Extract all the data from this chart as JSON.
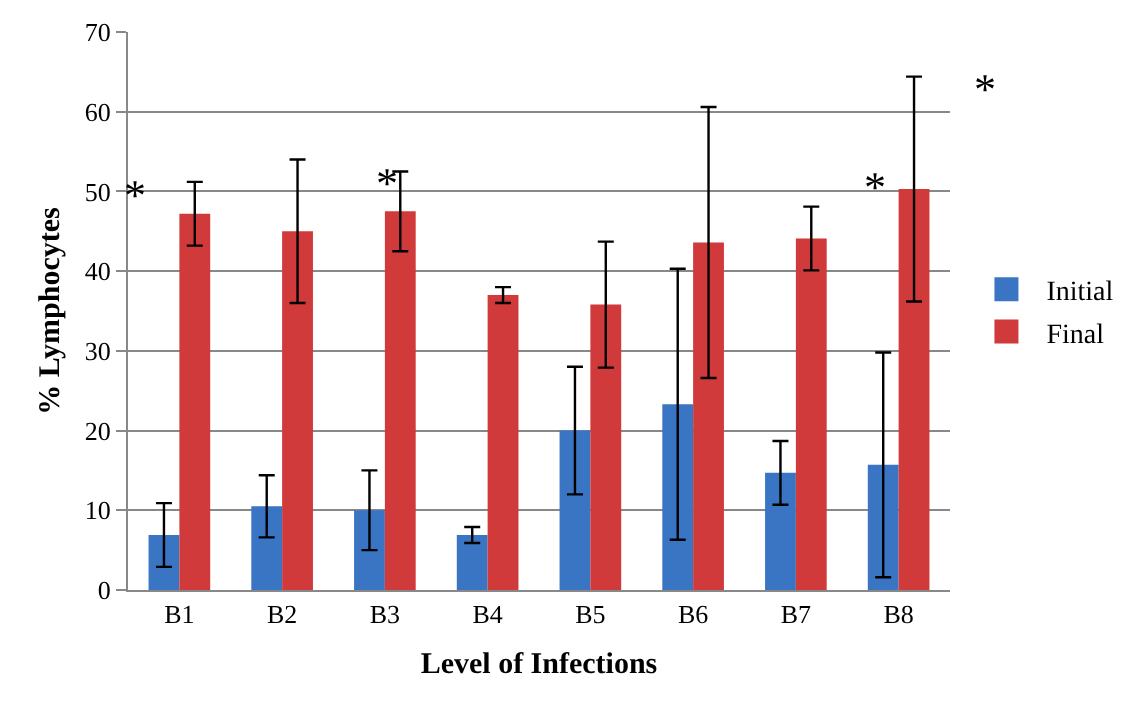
{
  "chart_data": {
    "type": "bar",
    "xlabel": "Level of Infections",
    "ylabel": "% Lymphocytes",
    "categories": [
      "B1",
      "B2",
      "B3",
      "B4",
      "B5",
      "B6",
      "B7",
      "B8"
    ],
    "series": [
      {
        "name": "Initial",
        "color": "#3a75c4",
        "values": [
          6.9,
          10.5,
          10.0,
          6.9,
          20.0,
          23.3,
          14.7,
          15.7
        ],
        "errors": [
          4.0,
          3.9,
          5.0,
          1.0,
          8.0,
          17.0,
          4.0,
          14.1
        ]
      },
      {
        "name": "Final",
        "color": "#d03a3a",
        "values": [
          47.2,
          45.0,
          47.5,
          37.0,
          35.8,
          43.6,
          44.1,
          50.3
        ],
        "errors": [
          4.0,
          9.0,
          5.0,
          1.0,
          7.9,
          17.0,
          4.0,
          14.1
        ]
      }
    ],
    "ylim": [
      0,
      70
    ],
    "yticks": [
      0,
      10,
      20,
      30,
      40,
      50,
      60,
      70
    ],
    "grid": "y",
    "legend": "right",
    "annotations": [
      "*",
      "*",
      {
        "text": "*",
        "x": "B8",
        "y": 50.5
      },
      "*"
    ]
  }
}
